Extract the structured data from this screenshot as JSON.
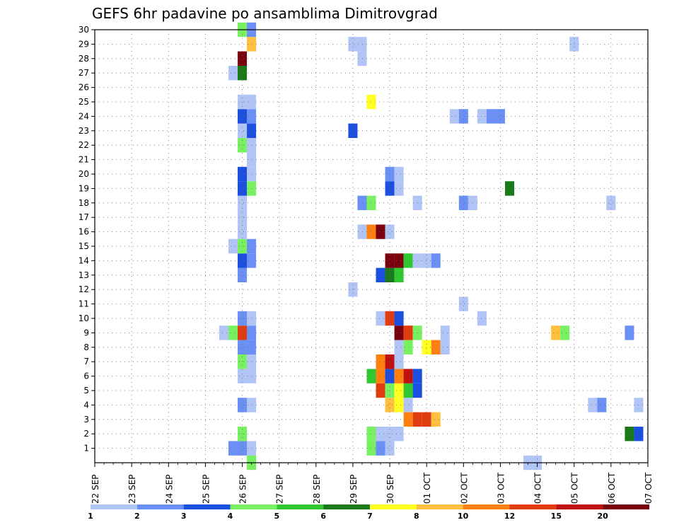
{
  "chart_data": {
    "type": "heatmap",
    "title": "GEFS 6hr padavine po ansamblima Dimitrovgrad",
    "x_ticks": [
      "22 SEP",
      "23 SEP",
      "24 SEP",
      "25 SEP",
      "26 SEP",
      "27 SEP",
      "28 SEP",
      "29 SEP",
      "30 SEP",
      "01 OCT",
      "02 OCT",
      "03 OCT",
      "04 OCT",
      "05 OCT",
      "06 OCT",
      "07 OCT"
    ],
    "y_ticks": [
      "1",
      "2",
      "3",
      "4",
      "5",
      "6",
      "7",
      "8",
      "9",
      "10",
      "11",
      "12",
      "13",
      "14",
      "15",
      "16",
      "17",
      "18",
      "19",
      "20",
      "21",
      "22",
      "23",
      "24",
      "25",
      "26",
      "27",
      "28",
      "29",
      "30"
    ],
    "x_range": [
      "22 SEP 00z",
      "07 OCT 00z"
    ],
    "y_range": [
      0,
      30
    ],
    "grid": true,
    "colorbar": {
      "labels": [
        "1",
        "2",
        "3",
        "4",
        "5",
        "6",
        "7",
        "8",
        "10",
        "12",
        "15",
        "20"
      ],
      "colors": [
        "#b0c4f5",
        "#6a8ff5",
        "#1a4fe0",
        "#78f062",
        "#30c830",
        "#1a7a1a",
        "#ffff20",
        "#ffc040",
        "#ff8010",
        "#e03c10",
        "#c01010",
        "#7a0010"
      ]
    },
    "cells": [
      {
        "t": "25 SEP 18z",
        "m": 1,
        "c": "#6a8ff5"
      },
      {
        "t": "26 SEP 00z",
        "m": 1,
        "c": "#6a8ff5"
      },
      {
        "t": "26 SEP 06z",
        "m": 1,
        "c": "#b0c4f5"
      },
      {
        "t": "26 SEP 00z",
        "m": 2,
        "c": "#78f062"
      },
      {
        "t": "26 SEP 00z",
        "m": 4,
        "c": "#6a8ff5"
      },
      {
        "t": "26 SEP 06z",
        "m": 4,
        "c": "#b0c4f5"
      },
      {
        "t": "26 SEP 00z",
        "m": 6,
        "c": "#b0c4f5"
      },
      {
        "t": "26 SEP 06z",
        "m": 6,
        "c": "#b0c4f5"
      },
      {
        "t": "26 SEP 00z",
        "m": 7,
        "c": "#78f062"
      },
      {
        "t": "26 SEP 06z",
        "m": 7,
        "c": "#b0c4f5"
      },
      {
        "t": "26 SEP 00z",
        "m": 8,
        "c": "#6a8ff5"
      },
      {
        "t": "26 SEP 06z",
        "m": 8,
        "c": "#6a8ff5"
      },
      {
        "t": "25 SEP 12z",
        "m": 9,
        "c": "#b0c4f5"
      },
      {
        "t": "25 SEP 18z",
        "m": 9,
        "c": "#78f062"
      },
      {
        "t": "26 SEP 00z",
        "m": 9,
        "c": "#e03c10"
      },
      {
        "t": "26 SEP 06z",
        "m": 9,
        "c": "#6a8ff5"
      },
      {
        "t": "26 SEP 00z",
        "m": 10,
        "c": "#6a8ff5"
      },
      {
        "t": "26 SEP 06z",
        "m": 10,
        "c": "#b0c4f5"
      },
      {
        "t": "26 SEP 00z",
        "m": 13,
        "c": "#6a8ff5"
      },
      {
        "t": "26 SEP 00z",
        "m": 14,
        "c": "#1a4fe0"
      },
      {
        "t": "26 SEP 06z",
        "m": 14,
        "c": "#6a8ff5"
      },
      {
        "t": "25 SEP 18z",
        "m": 15,
        "c": "#b0c4f5"
      },
      {
        "t": "26 SEP 00z",
        "m": 15,
        "c": "#78f062"
      },
      {
        "t": "26 SEP 06z",
        "m": 15,
        "c": "#6a8ff5"
      },
      {
        "t": "26 SEP 00z",
        "m": 16,
        "c": "#b0c4f5"
      },
      {
        "t": "26 SEP 00z",
        "m": 17,
        "c": "#b0c4f5"
      },
      {
        "t": "26 SEP 00z",
        "m": 18,
        "c": "#b0c4f5"
      },
      {
        "t": "26 SEP 00z",
        "m": 19,
        "c": "#1a4fe0"
      },
      {
        "t": "26 SEP 06z",
        "m": 19,
        "c": "#78f062"
      },
      {
        "t": "26 SEP 00z",
        "m": 20,
        "c": "#1a4fe0"
      },
      {
        "t": "26 SEP 06z",
        "m": 20,
        "c": "#b0c4f5"
      },
      {
        "t": "26 SEP 06z",
        "m": 21,
        "c": "#b0c4f5"
      },
      {
        "t": "26 SEP 00z",
        "m": 22,
        "c": "#78f062"
      },
      {
        "t": "26 SEP 06z",
        "m": 22,
        "c": "#b0c4f5"
      },
      {
        "t": "26 SEP 00z",
        "m": 23,
        "c": "#b0c4f5"
      },
      {
        "t": "26 SEP 06z",
        "m": 23,
        "c": "#1a4fe0"
      },
      {
        "t": "26 SEP 00z",
        "m": 24,
        "c": "#1a4fe0"
      },
      {
        "t": "26 SEP 06z",
        "m": 24,
        "c": "#6a8ff5"
      },
      {
        "t": "26 SEP 00z",
        "m": 25,
        "c": "#b0c4f5"
      },
      {
        "t": "26 SEP 06z",
        "m": 25,
        "c": "#b0c4f5"
      },
      {
        "t": "25 SEP 18z",
        "m": 27,
        "c": "#b0c4f5"
      },
      {
        "t": "26 SEP 00z",
        "m": 27,
        "c": "#1a7a1a"
      },
      {
        "t": "26 SEP 00z",
        "m": 28,
        "c": "#7a0010"
      },
      {
        "t": "26 SEP 06z",
        "m": 29,
        "c": "#ffc040"
      },
      {
        "t": "26 SEP 00z",
        "m": 30,
        "c": "#78f062"
      },
      {
        "t": "26 SEP 06z",
        "m": 30,
        "c": "#6a8ff5"
      },
      {
        "t": "26 SEP 06z",
        "m": 0,
        "c": "#78f062"
      },
      {
        "t": "29 SEP 12z",
        "m": 1,
        "c": "#78f062"
      },
      {
        "t": "29 SEP 18z",
        "m": 1,
        "c": "#6a8ff5"
      },
      {
        "t": "30 SEP 00z",
        "m": 1,
        "c": "#b0c4f5"
      },
      {
        "t": "29 SEP 12z",
        "m": 2,
        "c": "#78f062"
      },
      {
        "t": "29 SEP 18z",
        "m": 2,
        "c": "#b0c4f5"
      },
      {
        "t": "30 SEP 00z",
        "m": 2,
        "c": "#b0c4f5"
      },
      {
        "t": "30 SEP 06z",
        "m": 2,
        "c": "#b0c4f5"
      },
      {
        "t": "30 SEP 12z",
        "m": 3,
        "c": "#ff8010"
      },
      {
        "t": "30 SEP 18z",
        "m": 3,
        "c": "#e03c10"
      },
      {
        "t": "01 OCT 00z",
        "m": 3,
        "c": "#e03c10"
      },
      {
        "t": "01 OCT 06z",
        "m": 3,
        "c": "#ffc040"
      },
      {
        "t": "30 SEP 00z",
        "m": 4,
        "c": "#ffc040"
      },
      {
        "t": "30 SEP 06z",
        "m": 4,
        "c": "#ffff20"
      },
      {
        "t": "30 SEP 12z",
        "m": 4,
        "c": "#b0c4f5"
      },
      {
        "t": "29 SEP 18z",
        "m": 5,
        "c": "#e03c10"
      },
      {
        "t": "30 SEP 00z",
        "m": 5,
        "c": "#78f062"
      },
      {
        "t": "30 SEP 06z",
        "m": 5,
        "c": "#ffff20"
      },
      {
        "t": "30 SEP 12z",
        "m": 5,
        "c": "#30c830"
      },
      {
        "t": "30 SEP 18z",
        "m": 5,
        "c": "#1a4fe0"
      },
      {
        "t": "29 SEP 12z",
        "m": 6,
        "c": "#30c830"
      },
      {
        "t": "29 SEP 18z",
        "m": 6,
        "c": "#ff8010"
      },
      {
        "t": "30 SEP 00z",
        "m": 6,
        "c": "#1a4fe0"
      },
      {
        "t": "30 SEP 06z",
        "m": 6,
        "c": "#ff8010"
      },
      {
        "t": "30 SEP 12z",
        "m": 6,
        "c": "#c01010"
      },
      {
        "t": "30 SEP 18z",
        "m": 6,
        "c": "#1a4fe0"
      },
      {
        "t": "29 SEP 18z",
        "m": 7,
        "c": "#ff8010"
      },
      {
        "t": "30 SEP 00z",
        "m": 7,
        "c": "#c01010"
      },
      {
        "t": "30 SEP 06z",
        "m": 7,
        "c": "#b0c4f5"
      },
      {
        "t": "30 SEP 06z",
        "m": 8,
        "c": "#b0c4f5"
      },
      {
        "t": "30 SEP 12z",
        "m": 8,
        "c": "#78f062"
      },
      {
        "t": "01 OCT 00z",
        "m": 8,
        "c": "#ffff20"
      },
      {
        "t": "01 OCT 06z",
        "m": 8,
        "c": "#ff8010"
      },
      {
        "t": "01 OCT 12z",
        "m": 8,
        "c": "#b0c4f5"
      },
      {
        "t": "30 SEP 06z",
        "m": 9,
        "c": "#7a0010"
      },
      {
        "t": "30 SEP 12z",
        "m": 9,
        "c": "#e03c10"
      },
      {
        "t": "30 SEP 18z",
        "m": 9,
        "c": "#78f062"
      },
      {
        "t": "01 OCT 12z",
        "m": 9,
        "c": "#b0c4f5"
      },
      {
        "t": "29 SEP 18z",
        "m": 10,
        "c": "#b0c4f5"
      },
      {
        "t": "30 SEP 00z",
        "m": 10,
        "c": "#e03c10"
      },
      {
        "t": "30 SEP 06z",
        "m": 10,
        "c": "#1a4fe0"
      },
      {
        "t": "29 SEP 00z",
        "m": 12,
        "c": "#b0c4f5"
      },
      {
        "t": "29 SEP 18z",
        "m": 13,
        "c": "#1a4fe0"
      },
      {
        "t": "30 SEP 00z",
        "m": 13,
        "c": "#1a7a1a"
      },
      {
        "t": "30 SEP 06z",
        "m": 13,
        "c": "#30c830"
      },
      {
        "t": "30 SEP 00z",
        "m": 14,
        "c": "#7a0010"
      },
      {
        "t": "30 SEP 06z",
        "m": 14,
        "c": "#7a0010"
      },
      {
        "t": "30 SEP 12z",
        "m": 14,
        "c": "#30c830"
      },
      {
        "t": "30 SEP 18z",
        "m": 14,
        "c": "#b0c4f5"
      },
      {
        "t": "01 OCT 00z",
        "m": 14,
        "c": "#b0c4f5"
      },
      {
        "t": "01 OCT 06z",
        "m": 14,
        "c": "#6a8ff5"
      },
      {
        "t": "29 SEP 06z",
        "m": 16,
        "c": "#b0c4f5"
      },
      {
        "t": "29 SEP 12z",
        "m": 16,
        "c": "#ff8010"
      },
      {
        "t": "29 SEP 18z",
        "m": 16,
        "c": "#7a0010"
      },
      {
        "t": "30 SEP 00z",
        "m": 16,
        "c": "#b0c4f5"
      },
      {
        "t": "29 SEP 06z",
        "m": 18,
        "c": "#6a8ff5"
      },
      {
        "t": "29 SEP 12z",
        "m": 18,
        "c": "#78f062"
      },
      {
        "t": "30 SEP 18z",
        "m": 18,
        "c": "#b0c4f5"
      },
      {
        "t": "30 SEP 00z",
        "m": 19,
        "c": "#1a4fe0"
      },
      {
        "t": "30 SEP 06z",
        "m": 19,
        "c": "#b0c4f5"
      },
      {
        "t": "30 SEP 00z",
        "m": 20,
        "c": "#6a8ff5"
      },
      {
        "t": "30 SEP 06z",
        "m": 20,
        "c": "#b0c4f5"
      },
      {
        "t": "29 SEP 12z",
        "m": 25,
        "c": "#ffff20"
      },
      {
        "t": "29 SEP 00z",
        "m": 23,
        "c": "#1a4fe0"
      },
      {
        "t": "29 SEP 00z",
        "m": 29,
        "c": "#b0c4f5"
      },
      {
        "t": "29 SEP 06z",
        "m": 29,
        "c": "#b0c4f5"
      },
      {
        "t": "29 SEP 06z",
        "m": 28,
        "c": "#b0c4f5"
      },
      {
        "t": "02 OCT 00z",
        "m": 11,
        "c": "#b0c4f5"
      },
      {
        "t": "02 OCT 12z",
        "m": 10,
        "c": "#b0c4f5"
      },
      {
        "t": "02 OCT 00z",
        "m": 18,
        "c": "#6a8ff5"
      },
      {
        "t": "02 OCT 06z",
        "m": 18,
        "c": "#b0c4f5"
      },
      {
        "t": "01 OCT 18z",
        "m": 24,
        "c": "#b0c4f5"
      },
      {
        "t": "02 OCT 00z",
        "m": 24,
        "c": "#6a8ff5"
      },
      {
        "t": "02 OCT 12z",
        "m": 24,
        "c": "#b0c4f5"
      },
      {
        "t": "02 OCT 18z",
        "m": 24,
        "c": "#6a8ff5"
      },
      {
        "t": "03 OCT 00z",
        "m": 24,
        "c": "#6a8ff5"
      },
      {
        "t": "03 OCT 06z",
        "m": 19,
        "c": "#1a7a1a"
      },
      {
        "t": "03 OCT 18z",
        "m": 0,
        "c": "#b0c4f5"
      },
      {
        "t": "04 OCT 00z",
        "m": 0,
        "c": "#b0c4f5"
      },
      {
        "t": "04 OCT 12z",
        "m": 9,
        "c": "#ffc040"
      },
      {
        "t": "04 OCT 18z",
        "m": 9,
        "c": "#78f062"
      },
      {
        "t": "05 OCT 00z",
        "m": 29,
        "c": "#b0c4f5"
      },
      {
        "t": "05 OCT 12z",
        "m": 4,
        "c": "#b0c4f5"
      },
      {
        "t": "05 OCT 18z",
        "m": 4,
        "c": "#6a8ff5"
      },
      {
        "t": "06 OCT 00z",
        "m": 18,
        "c": "#b0c4f5"
      },
      {
        "t": "06 OCT 12z",
        "m": 9,
        "c": "#6a8ff5"
      },
      {
        "t": "06 OCT 12z",
        "m": 2,
        "c": "#1a7a1a"
      },
      {
        "t": "06 OCT 18z",
        "m": 2,
        "c": "#1a4fe0"
      },
      {
        "t": "06 OCT 18z",
        "m": 4,
        "c": "#b0c4f5"
      }
    ]
  }
}
